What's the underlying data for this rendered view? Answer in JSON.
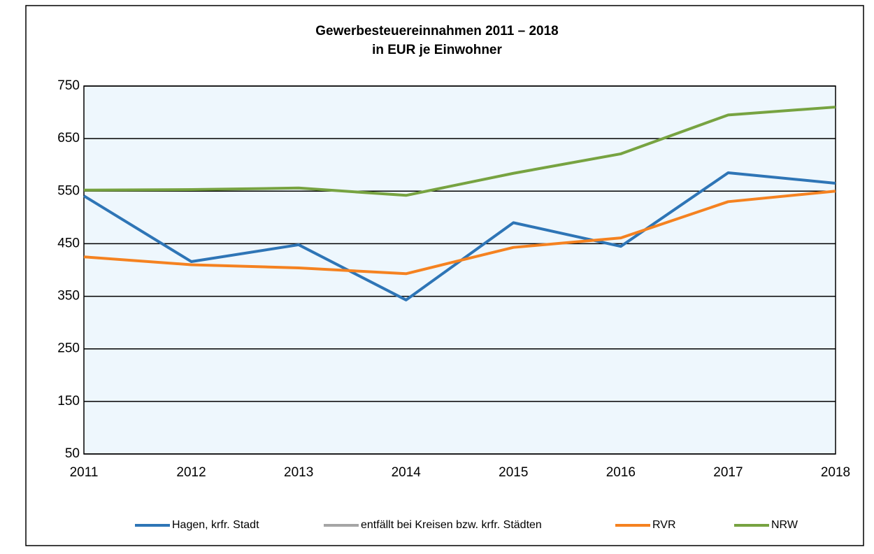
{
  "chart_data": {
    "type": "line",
    "title": "Gewerbesteuereinnahmen 2011 – 2018",
    "subtitle": "in EUR je Einwohner",
    "categories": [
      "2011",
      "2012",
      "2013",
      "2014",
      "2015",
      "2016",
      "2017",
      "2018"
    ],
    "series": [
      {
        "name": "Hagen, krfr. Stadt",
        "color": "#2e75b6",
        "values": [
          541,
          416,
          448,
          343,
          490,
          445,
          585,
          565
        ]
      },
      {
        "name": "entfällt bei Kreisen bzw. krfr. Städten",
        "color": "#a5a5a5",
        "values": [
          null,
          null,
          null,
          null,
          null,
          null,
          null,
          null
        ]
      },
      {
        "name": "RVR",
        "color": "#f58220",
        "values": [
          425,
          410,
          404,
          393,
          443,
          461,
          530,
          550
        ]
      },
      {
        "name": "NRW",
        "color": "#77a341",
        "values": [
          552,
          553,
          556,
          542,
          584,
          621,
          695,
          710
        ]
      }
    ],
    "ylim": [
      50,
      750
    ],
    "yticks": [
      50,
      150,
      250,
      350,
      450,
      550,
      650,
      750
    ],
    "grid": true
  }
}
